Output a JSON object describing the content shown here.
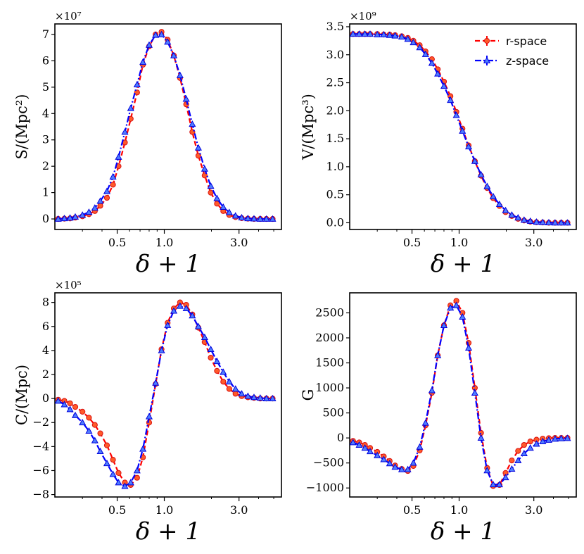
{
  "chart_data": [
    {
      "type": "line",
      "panel": "S",
      "ylabel": "S/(Mpc²)",
      "xlabel": "δ + 1",
      "multiplier": "×10⁷",
      "x_scale": "log",
      "xlim": [
        0.2,
        5.6
      ],
      "ylim": [
        -0.4,
        7.4
      ],
      "xticks": [
        0.5,
        1.0,
        3.0
      ],
      "xtick_labels": [
        "0.5",
        "1.0",
        "3.0"
      ],
      "yticks": [
        0,
        1,
        2,
        3,
        4,
        5,
        6,
        7
      ],
      "ytick_labels": [
        "0",
        "1",
        "2",
        "3",
        "4",
        "5",
        "6",
        "7"
      ],
      "x": [
        0.21,
        0.23,
        0.25,
        0.27,
        0.3,
        0.33,
        0.36,
        0.39,
        0.43,
        0.47,
        0.51,
        0.56,
        0.61,
        0.67,
        0.73,
        0.8,
        0.88,
        0.96,
        1.05,
        1.15,
        1.26,
        1.38,
        1.51,
        1.65,
        1.81,
        1.98,
        2.17,
        2.38,
        2.6,
        2.85,
        3.12,
        3.42,
        3.74,
        4.1,
        4.49,
        4.92
      ],
      "series": [
        {
          "name": "r-space",
          "color": "#ff0000",
          "marker": "circle",
          "linestyle": "dashed",
          "values": [
            0.0,
            0.01,
            0.02,
            0.05,
            0.1,
            0.18,
            0.3,
            0.5,
            0.8,
            1.3,
            2.0,
            2.9,
            3.8,
            4.8,
            5.85,
            6.55,
            7.0,
            7.1,
            6.8,
            6.2,
            5.35,
            4.35,
            3.3,
            2.4,
            1.65,
            1.0,
            0.58,
            0.3,
            0.15,
            0.07,
            0.03,
            0.01,
            0.0,
            0.0,
            0.0,
            0.0
          ]
        },
        {
          "name": "z-space",
          "color": "#0000ff",
          "marker": "triangle",
          "linestyle": "dashdot",
          "values": [
            0.0,
            0.02,
            0.04,
            0.08,
            0.15,
            0.26,
            0.42,
            0.68,
            1.05,
            1.6,
            2.35,
            3.3,
            4.2,
            5.1,
            5.95,
            6.6,
            6.98,
            7.0,
            6.72,
            6.2,
            5.45,
            4.55,
            3.6,
            2.7,
            1.9,
            1.25,
            0.78,
            0.45,
            0.25,
            0.12,
            0.05,
            0.02,
            0.01,
            0.0,
            0.0,
            0.0
          ]
        }
      ]
    },
    {
      "type": "line",
      "panel": "V",
      "ylabel": "V/(Mpc³)",
      "xlabel": "δ + 1",
      "multiplier": "×10⁹",
      "x_scale": "log",
      "xlim": [
        0.2,
        5.6
      ],
      "ylim": [
        -0.12,
        3.55
      ],
      "xticks": [
        0.5,
        1.0,
        3.0
      ],
      "xtick_labels": [
        "0.5",
        "1.0",
        "3.0"
      ],
      "yticks": [
        0.0,
        0.5,
        1.0,
        1.5,
        2.0,
        2.5,
        3.0,
        3.5
      ],
      "ytick_labels": [
        "0.0",
        "0.5",
        "1.0",
        "1.5",
        "2.0",
        "2.5",
        "3.0",
        "3.5"
      ],
      "legend": {
        "position": "top-right",
        "entries": [
          "r-space",
          "z-space"
        ]
      },
      "x": [
        0.21,
        0.23,
        0.25,
        0.27,
        0.3,
        0.33,
        0.36,
        0.39,
        0.43,
        0.47,
        0.51,
        0.56,
        0.61,
        0.67,
        0.73,
        0.8,
        0.88,
        0.96,
        1.05,
        1.15,
        1.26,
        1.38,
        1.51,
        1.65,
        1.81,
        1.98,
        2.17,
        2.38,
        2.6,
        2.85,
        3.12,
        3.42,
        3.74,
        4.1,
        4.49,
        4.92
      ],
      "series": [
        {
          "name": "r-space",
          "color": "#ff0000",
          "marker": "circle",
          "linestyle": "dashed",
          "values": [
            3.37,
            3.37,
            3.37,
            3.37,
            3.37,
            3.36,
            3.36,
            3.35,
            3.33,
            3.3,
            3.25,
            3.17,
            3.06,
            2.92,
            2.74,
            2.52,
            2.26,
            1.98,
            1.68,
            1.38,
            1.1,
            0.84,
            0.62,
            0.44,
            0.3,
            0.19,
            0.12,
            0.07,
            0.04,
            0.02,
            0.01,
            0.005,
            0.0,
            0.0,
            0.0,
            0.0
          ]
        },
        {
          "name": "z-space",
          "color": "#0000ff",
          "marker": "triangle",
          "linestyle": "dashdot",
          "values": [
            3.37,
            3.37,
            3.37,
            3.37,
            3.36,
            3.36,
            3.35,
            3.34,
            3.32,
            3.28,
            3.22,
            3.13,
            3.01,
            2.85,
            2.66,
            2.44,
            2.19,
            1.92,
            1.64,
            1.36,
            1.1,
            0.86,
            0.65,
            0.47,
            0.33,
            0.22,
            0.14,
            0.09,
            0.05,
            0.03,
            0.015,
            0.008,
            0.004,
            0.0,
            0.0,
            0.0
          ]
        }
      ]
    },
    {
      "type": "line",
      "panel": "C",
      "ylabel": "C/(Mpc)",
      "xlabel": "δ + 1",
      "multiplier": "×10⁵",
      "x_scale": "log",
      "xlim": [
        0.2,
        5.6
      ],
      "ylim": [
        -8.2,
        8.8
      ],
      "xticks": [
        0.5,
        1.0,
        3.0
      ],
      "xtick_labels": [
        "0.5",
        "1.0",
        "3.0"
      ],
      "yticks": [
        -8,
        -6,
        -4,
        -2,
        0,
        2,
        4,
        6,
        8
      ],
      "ytick_labels": [
        "−8",
        "−6",
        "−4",
        "−2",
        "0",
        "2",
        "4",
        "6",
        "8"
      ],
      "x": [
        0.21,
        0.23,
        0.25,
        0.27,
        0.3,
        0.33,
        0.36,
        0.39,
        0.43,
        0.47,
        0.51,
        0.56,
        0.61,
        0.67,
        0.73,
        0.8,
        0.88,
        0.96,
        1.05,
        1.15,
        1.26,
        1.38,
        1.51,
        1.65,
        1.81,
        1.98,
        2.17,
        2.38,
        2.6,
        2.85,
        3.12,
        3.42,
        3.74,
        4.1,
        4.49,
        4.92
      ],
      "series": [
        {
          "name": "r-space",
          "color": "#ff0000",
          "marker": "circle",
          "linestyle": "dashed",
          "values": [
            -0.1,
            -0.2,
            -0.4,
            -0.7,
            -1.1,
            -1.6,
            -2.2,
            -2.9,
            -3.9,
            -5.1,
            -6.2,
            -7.0,
            -7.2,
            -6.6,
            -4.9,
            -2.0,
            1.2,
            4.1,
            6.3,
            7.5,
            8.0,
            7.8,
            7.0,
            5.9,
            4.7,
            3.4,
            2.3,
            1.4,
            0.8,
            0.4,
            0.2,
            0.1,
            0.05,
            0.0,
            0.0,
            0.0
          ]
        },
        {
          "name": "z-space",
          "color": "#0000ff",
          "marker": "triangle",
          "linestyle": "dashdot",
          "values": [
            -0.2,
            -0.5,
            -0.9,
            -1.4,
            -2.0,
            -2.7,
            -3.5,
            -4.4,
            -5.4,
            -6.3,
            -7.0,
            -7.3,
            -7.0,
            -6.0,
            -4.2,
            -1.5,
            1.3,
            4.0,
            6.1,
            7.3,
            7.7,
            7.5,
            6.9,
            6.0,
            5.1,
            4.1,
            3.1,
            2.2,
            1.4,
            0.8,
            0.4,
            0.2,
            0.1,
            0.05,
            0.0,
            0.0
          ]
        }
      ]
    },
    {
      "type": "line",
      "panel": "G",
      "ylabel": "G",
      "xlabel": "δ + 1",
      "multiplier": "",
      "x_scale": "log",
      "xlim": [
        0.2,
        5.6
      ],
      "ylim": [
        -1180,
        2900
      ],
      "xticks": [
        0.5,
        1.0,
        3.0
      ],
      "xtick_labels": [
        "0.5",
        "1.0",
        "3.0"
      ],
      "yticks": [
        -1000,
        -500,
        0,
        500,
        1000,
        1500,
        2000,
        2500
      ],
      "ytick_labels": [
        "−1000",
        "−500",
        "0",
        "500",
        "1000",
        "1500",
        "2000",
        "2500"
      ],
      "x": [
        0.21,
        0.23,
        0.25,
        0.27,
        0.3,
        0.33,
        0.36,
        0.39,
        0.43,
        0.47,
        0.51,
        0.56,
        0.61,
        0.67,
        0.73,
        0.8,
        0.88,
        0.96,
        1.05,
        1.15,
        1.26,
        1.38,
        1.51,
        1.65,
        1.81,
        1.98,
        2.17,
        2.38,
        2.6,
        2.85,
        3.12,
        3.42,
        3.74,
        4.1,
        4.49,
        4.92
      ],
      "series": [
        {
          "name": "r-space",
          "color": "#ff0000",
          "marker": "circle",
          "linestyle": "dashed",
          "values": [
            -60,
            -90,
            -140,
            -200,
            -280,
            -370,
            -460,
            -550,
            -620,
            -660,
            -560,
            -250,
            250,
            900,
            1650,
            2250,
            2650,
            2740,
            2500,
            1900,
            1000,
            100,
            -600,
            -960,
            -940,
            -700,
            -450,
            -260,
            -140,
            -70,
            -35,
            -15,
            -5,
            0,
            0,
            0
          ]
        },
        {
          "name": "z-space",
          "color": "#0000ff",
          "marker": "triangle",
          "linestyle": "dashdot",
          "values": [
            -90,
            -140,
            -200,
            -270,
            -350,
            -430,
            -510,
            -580,
            -630,
            -630,
            -500,
            -180,
            300,
            950,
            1650,
            2250,
            2600,
            2650,
            2420,
            1800,
            900,
            0,
            -650,
            -930,
            -930,
            -790,
            -620,
            -450,
            -310,
            -200,
            -120,
            -70,
            -40,
            -20,
            -10,
            -5
          ]
        }
      ]
    }
  ]
}
